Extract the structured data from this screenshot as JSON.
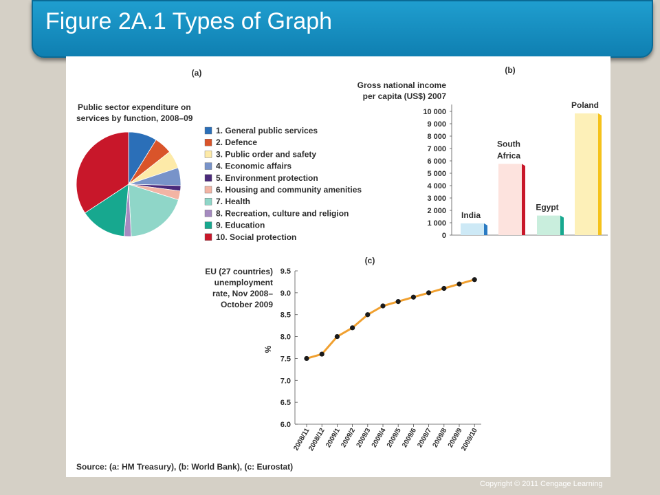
{
  "slide_title": "Figure 2A.1 Types of Graph",
  "source": "Source: (a: HM Treasury), (b: World Bank), (c: Eurostat)",
  "copyright": "Copyright  © 2011  Cengage Learning",
  "chart_data": [
    {
      "panel": "(a)",
      "type": "pie",
      "title": "Public sector expenditure on services by function, 2008–09",
      "title_lines": [
        "Public sector expenditure on",
        "services by function, 2008–09"
      ],
      "labels": [
        "1. General public services",
        "2. Defence",
        "3. Public order and safety",
        "4. Economic affairs",
        "5. Environment protection",
        "6. Housing and community amenities",
        "7. Health",
        "8. Recreation, culture and religion",
        "9. Education",
        "10. Social protection"
      ],
      "values": [
        8,
        5,
        5,
        5,
        1.5,
        2.5,
        17.5,
        2,
        13,
        31
      ],
      "colors": [
        "#2b6fb8",
        "#d9542a",
        "#fdeaa8",
        "#7893c9",
        "#4b2a7b",
        "#f2b4a4",
        "#8fd6c8",
        "#a58ac0",
        "#17a88f",
        "#c8172a"
      ]
    },
    {
      "panel": "(b)",
      "type": "bar",
      "title": "Gross national income per capita (US$) 2007",
      "title_lines": [
        "Gross national income",
        "per capita (US$) 2007"
      ],
      "categories": [
        "India",
        "South Africa",
        "Egypt",
        "Poland"
      ],
      "category_lines": [
        [
          "India"
        ],
        [
          "South",
          "Africa"
        ],
        [
          "Egypt"
        ],
        [
          "Poland"
        ]
      ],
      "values": [
        950,
        5760,
        1580,
        9840
      ],
      "front_colors": [
        "#cde9f6",
        "#fde3de",
        "#c9eedd",
        "#fdf0b8"
      ],
      "side_colors": [
        "#2a7ac2",
        "#c8172a",
        "#17a88f",
        "#f5c21b"
      ],
      "y_ticks": [
        "0",
        "1 000",
        "2 000",
        "3 000",
        "4 000",
        "5 000",
        "6 000",
        "7 000",
        "8 000",
        "9 000",
        "10 000"
      ],
      "ylim": [
        0,
        10000
      ]
    },
    {
      "panel": "(c)",
      "type": "line",
      "title": "EU (27 countries) unemployment rate, Nov 2008– October 2009",
      "title_lines": [
        "EU (27 countries)",
        "unemployment",
        "rate, Nov 2008–",
        "October 2009"
      ],
      "ylabel": "%",
      "x": [
        "2008/11",
        "2008/12",
        "2009/1",
        "2009/2",
        "2009/3",
        "2009/4",
        "2009/5",
        "2009/6",
        "2009/7",
        "2009/8",
        "2009/9",
        "2009/10"
      ],
      "y": [
        7.5,
        7.6,
        8.0,
        8.2,
        8.5,
        8.7,
        8.8,
        8.9,
        9.0,
        9.1,
        9.2,
        9.3
      ],
      "y_ticks": [
        "6.0",
        "6.5",
        "7.0",
        "7.5",
        "8.0",
        "8.5",
        "9.0",
        "9.5"
      ],
      "ylim": [
        6.0,
        9.5
      ],
      "line_color": "#f0a030",
      "point_color": "#1a1a1a"
    }
  ]
}
